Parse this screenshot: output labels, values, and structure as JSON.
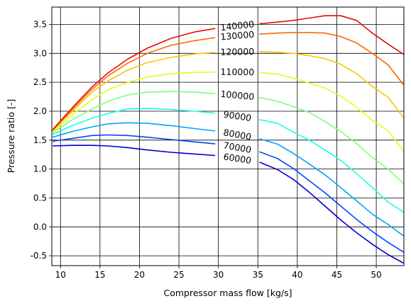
{
  "chart_data": {
    "type": "line",
    "xlabel": "Compressor mass flow [kg/s]",
    "ylabel": "Pressure ratio [-]",
    "xlim": [
      8.9,
      53.5
    ],
    "ylim": [
      -0.67,
      3.8
    ],
    "xticks": [
      "10",
      "15",
      "20",
      "25",
      "30",
      "35",
      "40",
      "45",
      "50"
    ],
    "yticks": [
      "-0.5",
      "0.0",
      "0.5",
      "1.0",
      "1.5",
      "2.0",
      "2.5",
      "3.0",
      "3.5"
    ],
    "grid": true,
    "series": [
      {
        "name": "60000",
        "color": "#0000cd",
        "x": [
          9,
          11.5,
          14,
          16,
          18.5,
          21,
          24,
          27,
          30,
          33,
          35,
          37.5,
          39.5,
          41.5,
          43.5,
          45.5,
          47.5,
          49.5,
          51.5,
          53.5
        ],
        "y": [
          1.4,
          1.41,
          1.41,
          1.4,
          1.37,
          1.33,
          1.29,
          1.26,
          1.23,
          1.19,
          1.13,
          0.99,
          0.82,
          0.6,
          0.36,
          0.12,
          -0.1,
          -0.3,
          -0.48,
          -0.63
        ]
      },
      {
        "name": "70000",
        "color": "#0046ff",
        "x": [
          9,
          11.5,
          14,
          16,
          18.5,
          21,
          24,
          27,
          30,
          33,
          35,
          37.5,
          39.5,
          41.5,
          43.5,
          45.5,
          47.5,
          49.5,
          51.5,
          53.5
        ],
        "y": [
          1.48,
          1.53,
          1.58,
          1.59,
          1.58,
          1.55,
          1.51,
          1.47,
          1.43,
          1.38,
          1.31,
          1.18,
          1.01,
          0.8,
          0.59,
          0.36,
          0.13,
          -0.08,
          -0.27,
          -0.44
        ]
      },
      {
        "name": "80000",
        "color": "#00a4ff",
        "x": [
          9,
          11.5,
          14,
          16,
          18.5,
          21,
          24,
          27,
          30,
          33,
          35,
          37.5,
          39.5,
          41.5,
          43.5,
          45.5,
          47.5,
          49.5,
          51.5,
          53.5
        ],
        "y": [
          1.55,
          1.65,
          1.73,
          1.78,
          1.8,
          1.79,
          1.75,
          1.7,
          1.65,
          1.6,
          1.53,
          1.43,
          1.27,
          1.09,
          0.9,
          0.68,
          0.45,
          0.22,
          0.04,
          -0.16
        ]
      },
      {
        "name": "90000",
        "color": "#1affe1",
        "x": [
          9,
          11.5,
          14,
          16,
          18.5,
          21,
          24,
          27,
          30,
          33,
          35,
          37.5,
          39.5,
          41.5,
          43.5,
          45.5,
          47.5,
          49.5,
          51.5,
          53.5
        ],
        "y": [
          1.6,
          1.75,
          1.88,
          1.96,
          2.04,
          2.05,
          2.03,
          2.0,
          1.96,
          1.92,
          1.86,
          1.79,
          1.64,
          1.5,
          1.33,
          1.15,
          0.92,
          0.68,
          0.43,
          0.25
        ]
      },
      {
        "name": "100000",
        "color": "#7dff7a",
        "x": [
          9,
          11.5,
          14,
          16,
          18.5,
          21,
          24,
          27,
          30,
          33,
          35,
          37.5,
          39.5,
          41.5,
          43.5,
          45.5,
          47.5,
          49.5,
          51.5,
          53.5
        ],
        "y": [
          1.63,
          1.85,
          2.04,
          2.17,
          2.28,
          2.33,
          2.34,
          2.33,
          2.3,
          2.27,
          2.24,
          2.17,
          2.08,
          1.98,
          1.82,
          1.65,
          1.44,
          1.2,
          1.0,
          0.74
        ]
      },
      {
        "name": "110000",
        "color": "#e1ff1a",
        "x": [
          9,
          11.5,
          14,
          16,
          18.5,
          21,
          24,
          27,
          30,
          33,
          35,
          37.5,
          39.5,
          41.5,
          43.5,
          45.5,
          47.5,
          49.5,
          51.5,
          53.5
        ],
        "y": [
          1.64,
          1.94,
          2.2,
          2.37,
          2.5,
          2.59,
          2.65,
          2.67,
          2.68,
          2.68,
          2.67,
          2.64,
          2.57,
          2.49,
          2.4,
          2.26,
          2.07,
          1.84,
          1.66,
          1.3
        ]
      },
      {
        "name": "120000",
        "color": "#ffc400",
        "x": [
          9,
          11.5,
          14,
          16,
          18.5,
          21,
          24,
          27,
          30,
          33,
          35,
          37.5,
          39.5,
          41.5,
          43.5,
          45.5,
          47.5,
          49.5,
          51.5,
          53.5
        ],
        "y": [
          1.66,
          2.0,
          2.33,
          2.52,
          2.71,
          2.84,
          2.93,
          2.99,
          3.02,
          3.03,
          3.03,
          3.02,
          3.0,
          2.96,
          2.91,
          2.81,
          2.65,
          2.43,
          2.24,
          1.88
        ]
      },
      {
        "name": "130000",
        "color": "#ff6800",
        "x": [
          9,
          11.5,
          14,
          16,
          18.5,
          21,
          24,
          27,
          30,
          33,
          35,
          37.5,
          39.5,
          41.5,
          43.5,
          45.5,
          47.5,
          49.5,
          51.5,
          53.5
        ],
        "y": [
          1.67,
          2.03,
          2.38,
          2.61,
          2.83,
          3.0,
          3.14,
          3.22,
          3.28,
          3.31,
          3.33,
          3.35,
          3.36,
          3.36,
          3.35,
          3.29,
          3.18,
          3.0,
          2.8,
          2.45
        ]
      },
      {
        "name": "140000",
        "color": "#e50d00",
        "x": [
          9,
          11.5,
          14,
          16,
          18.5,
          21,
          24,
          27,
          30,
          33,
          35,
          37.5,
          39.5,
          41.5,
          43.5,
          45.5,
          47.5,
          49.5,
          51.5,
          53.5
        ],
        "y": [
          1.68,
          2.06,
          2.42,
          2.66,
          2.9,
          3.09,
          3.26,
          3.37,
          3.44,
          3.49,
          3.51,
          3.54,
          3.57,
          3.61,
          3.65,
          3.65,
          3.57,
          3.35,
          3.16,
          2.98
        ]
      }
    ]
  }
}
